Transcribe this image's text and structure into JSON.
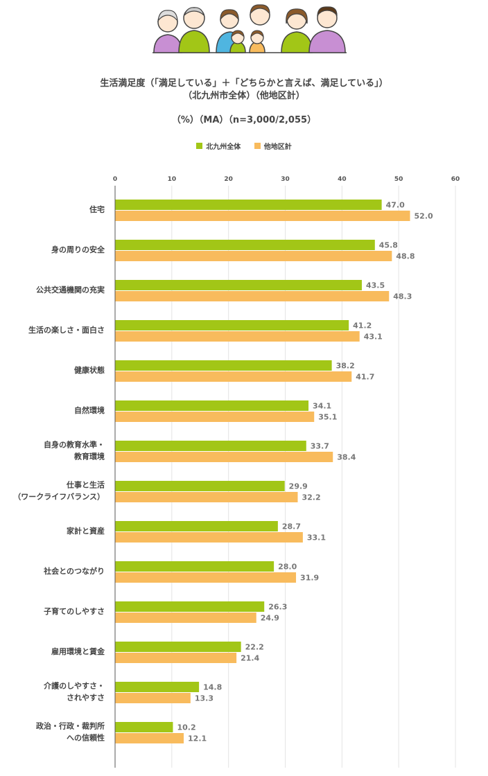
{
  "header": {
    "illustration": "family-illustration"
  },
  "title_line1": "生活満足度（「満足している」＋「どちらかと言えば、満足している」）",
  "title_line2": "（北九州市全体）（他地区計）",
  "subtitle": "（%）（MA）（n=3,000/2,055）",
  "legend": [
    {
      "label": "北九州全体",
      "color": "#a2c617"
    },
    {
      "label": "他地区計",
      "color": "#f8bb5d"
    }
  ],
  "chart_data": {
    "type": "bar",
    "orientation": "horizontal",
    "xlim": [
      0,
      60
    ],
    "ticks": [
      0,
      10,
      20,
      30,
      40,
      50,
      60
    ],
    "grid": true,
    "legend_position": "top-center",
    "categories": [
      [
        "住宅"
      ],
      [
        "身の周りの安全"
      ],
      [
        "公共交通機関の充実"
      ],
      [
        "生活の楽しさ・面白さ"
      ],
      [
        "健康状態"
      ],
      [
        "自然環境"
      ],
      [
        "自身の教育水準・",
        "教育環境"
      ],
      [
        "仕事と生活",
        "（ワークライフバランス）"
      ],
      [
        "家計と資産"
      ],
      [
        "社会とのつながり"
      ],
      [
        "子育てのしやすさ"
      ],
      [
        "雇用環境と賃金"
      ],
      [
        "介護のしやすさ・",
        "されやすさ"
      ],
      [
        "政治・行政・裁判所",
        "への信頼性"
      ]
    ],
    "series": [
      {
        "name": "北九州全体",
        "color": "#a2c617",
        "values": [
          47.0,
          45.8,
          43.5,
          41.2,
          38.2,
          34.1,
          33.7,
          29.9,
          28.7,
          28.0,
          26.3,
          22.2,
          14.8,
          10.2
        ],
        "labels": [
          "47.0",
          "45.8",
          "43.5",
          "41.2",
          "38.2",
          "34.1",
          "33.7",
          "29.9",
          "28.7",
          "28.0",
          "26.3",
          "22.2",
          "14.8",
          "10.2"
        ]
      },
      {
        "name": "他地区計",
        "color": "#f8bb5d",
        "values": [
          52.0,
          48.8,
          48.3,
          43.1,
          41.7,
          35.1,
          38.4,
          32.2,
          33.1,
          31.9,
          24.9,
          21.4,
          13.3,
          12.1
        ],
        "labels": [
          "52.0",
          "48.8",
          "48.3",
          "43.1",
          "41.7",
          "35.1",
          "38.4",
          "32.2",
          "33.1",
          "31.9",
          "24.9",
          "21.4",
          "13.3",
          "12.1"
        ]
      }
    ]
  }
}
